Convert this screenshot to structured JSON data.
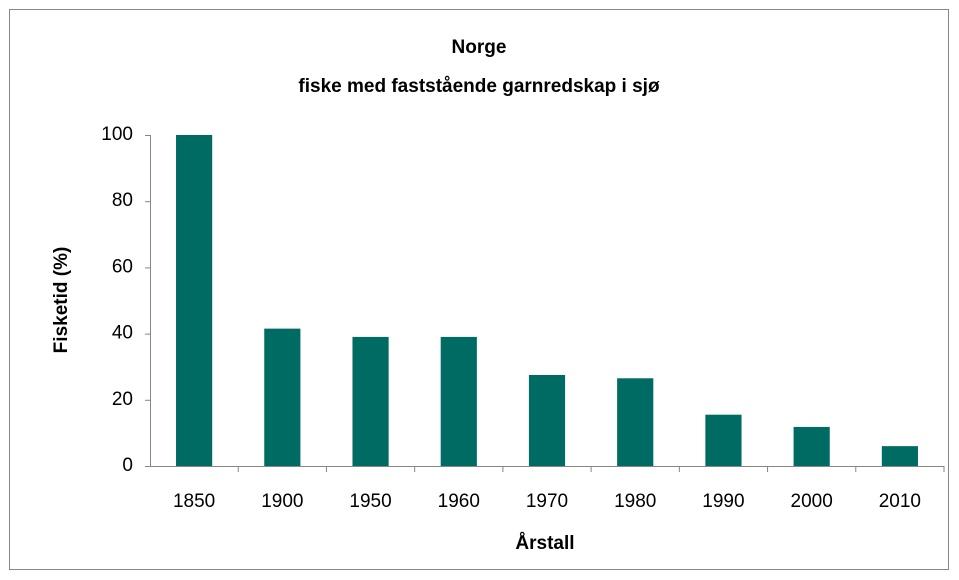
{
  "chart_data": {
    "type": "bar",
    "title": "Norge",
    "subtitle": "fiske med faststående garnredskap i sjø",
    "x_label": "Årstall",
    "y_label": "Fisketid (%)",
    "categories": [
      "1850",
      "1900",
      "1950",
      "1960",
      "1970",
      "1980",
      "1990",
      "2000",
      "2010"
    ],
    "values": [
      100,
      41.5,
      39,
      39,
      27.5,
      26.5,
      15.5,
      11.8,
      6
    ],
    "color": "#006b63",
    "ylim": [
      0,
      100
    ],
    "yticks": [
      0,
      20,
      40,
      60,
      80,
      100
    ],
    "grid": false
  }
}
